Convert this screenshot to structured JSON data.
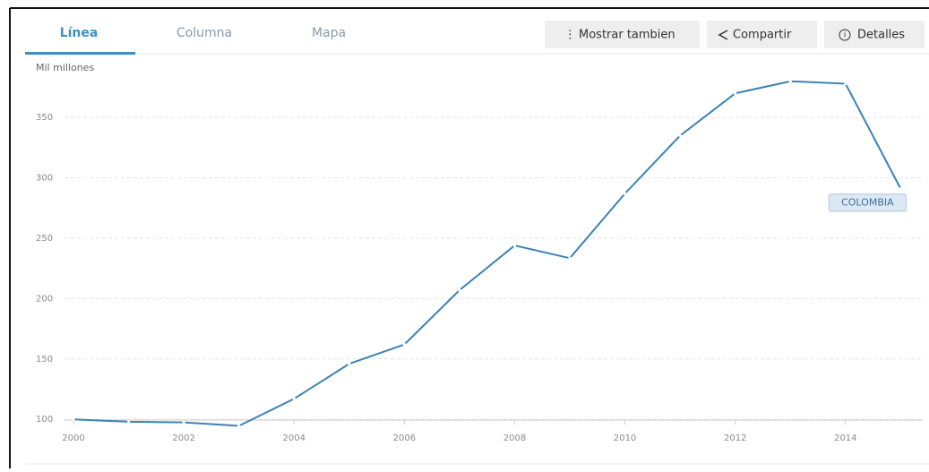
{
  "tabs": [
    "Línea",
    "Columna",
    "Mapa"
  ],
  "buttons": [
    "Mostrar tambien",
    "Compartir",
    "Detalles"
  ],
  "chart_data": {
    "type": "line",
    "y_label": "Mil millones",
    "x": [
      2000,
      2001,
      2002,
      2003,
      2004,
      2005,
      2006,
      2007,
      2008,
      2009,
      2010,
      2011,
      2012,
      2013,
      2014,
      2015
    ],
    "series": [
      {
        "name": "COLOMBIA",
        "color": "#3b82b6",
        "values": [
          100,
          98,
          97.5,
          94.6,
          117,
          146,
          162,
          207,
          244,
          233.5,
          287,
          335,
          370,
          380,
          378,
          291
        ]
      }
    ],
    "xlim": [
      2000,
      2015.4
    ],
    "xticks": [
      2000,
      2002,
      2004,
      2006,
      2008,
      2010,
      2012,
      2014
    ],
    "ylim": [
      92,
      385
    ],
    "yticks": [
      100,
      150,
      200,
      250,
      300,
      350
    ],
    "grid": true
  }
}
